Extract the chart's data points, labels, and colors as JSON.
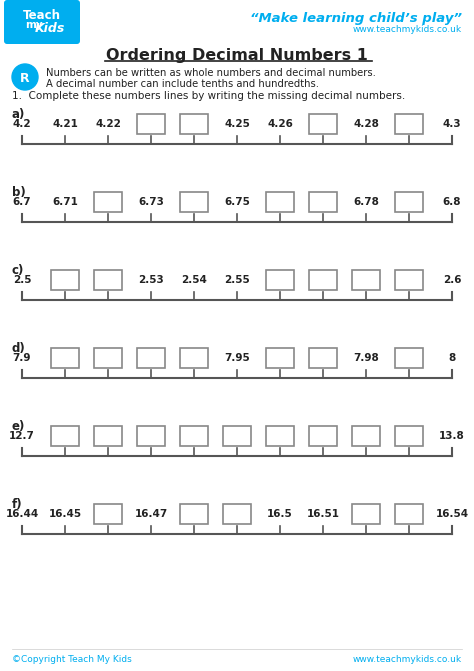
{
  "title": "Ordering Decimal Numbers 1",
  "tagline": "“Make learning child’s play”",
  "website": "www.teachmykids.co.uk",
  "instruction_line1": "Numbers can be written as whole numbers and decimal numbers.",
  "instruction_line2": "A decimal number can include tenths and hundredths.",
  "question": "1.  Complete these numbers lines by writing the missing decimal numbers.",
  "footer_left": "©Copyright Teach My Kids",
  "footer_right": "www.teachmykids.co.uk",
  "rows": [
    {
      "label": "a)",
      "items": [
        {
          "text": "4.2",
          "box": false
        },
        {
          "text": "4.21",
          "box": false
        },
        {
          "text": "4.22",
          "box": false
        },
        {
          "text": "",
          "box": true
        },
        {
          "text": "",
          "box": true
        },
        {
          "text": "4.25",
          "box": false
        },
        {
          "text": "4.26",
          "box": false
        },
        {
          "text": "",
          "box": true
        },
        {
          "text": "4.28",
          "box": false
        },
        {
          "text": "",
          "box": true
        },
        {
          "text": "4.3",
          "box": false
        }
      ]
    },
    {
      "label": "b)",
      "items": [
        {
          "text": "6.7",
          "box": false
        },
        {
          "text": "6.71",
          "box": false
        },
        {
          "text": "",
          "box": true
        },
        {
          "text": "6.73",
          "box": false
        },
        {
          "text": "",
          "box": true
        },
        {
          "text": "6.75",
          "box": false
        },
        {
          "text": "",
          "box": true
        },
        {
          "text": "",
          "box": true
        },
        {
          "text": "6.78",
          "box": false
        },
        {
          "text": "",
          "box": true
        },
        {
          "text": "6.8",
          "box": false
        }
      ]
    },
    {
      "label": "c)",
      "items": [
        {
          "text": "2.5",
          "box": false
        },
        {
          "text": "",
          "box": true
        },
        {
          "text": "",
          "box": true
        },
        {
          "text": "2.53",
          "box": false
        },
        {
          "text": "2.54",
          "box": false
        },
        {
          "text": "2.55",
          "box": false
        },
        {
          "text": "",
          "box": true
        },
        {
          "text": "",
          "box": true
        },
        {
          "text": "",
          "box": true
        },
        {
          "text": "",
          "box": true
        },
        {
          "text": "2.6",
          "box": false
        }
      ]
    },
    {
      "label": "d)",
      "items": [
        {
          "text": "7.9",
          "box": false
        },
        {
          "text": "",
          "box": true
        },
        {
          "text": "",
          "box": true
        },
        {
          "text": "",
          "box": true
        },
        {
          "text": "",
          "box": true
        },
        {
          "text": "7.95",
          "box": false
        },
        {
          "text": "",
          "box": true
        },
        {
          "text": "",
          "box": true
        },
        {
          "text": "7.98",
          "box": false
        },
        {
          "text": "",
          "box": true
        },
        {
          "text": "8",
          "box": false
        }
      ]
    },
    {
      "label": "e)",
      "items": [
        {
          "text": "12.7",
          "box": false
        },
        {
          "text": "",
          "box": true
        },
        {
          "text": "",
          "box": true
        },
        {
          "text": "",
          "box": true
        },
        {
          "text": "",
          "box": true
        },
        {
          "text": "",
          "box": true
        },
        {
          "text": "",
          "box": true
        },
        {
          "text": "",
          "box": true
        },
        {
          "text": "",
          "box": true
        },
        {
          "text": "",
          "box": true
        },
        {
          "text": "13.8",
          "box": false
        }
      ]
    },
    {
      "label": "f)",
      "items": [
        {
          "text": "16.44",
          "box": false
        },
        {
          "text": "16.45",
          "box": false
        },
        {
          "text": "",
          "box": true
        },
        {
          "text": "16.47",
          "box": false
        },
        {
          "text": "",
          "box": true
        },
        {
          "text": "",
          "box": true
        },
        {
          "text": "16.5",
          "box": false
        },
        {
          "text": "16.51",
          "box": false
        },
        {
          "text": "",
          "box": true
        },
        {
          "text": "",
          "box": true
        },
        {
          "text": "16.54",
          "box": false
        }
      ]
    }
  ],
  "bg_color": "#ffffff",
  "text_color": "#222222",
  "cyan_color": "#00aeef",
  "line_color": "#555555",
  "box_color": "#888888"
}
